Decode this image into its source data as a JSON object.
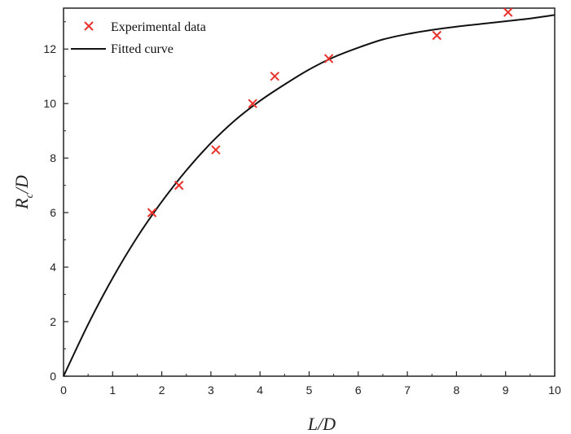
{
  "chart_data": {
    "type": "scatter",
    "xlabel": "L/D",
    "ylabel_main": "R",
    "ylabel_sub": "c",
    "ylabel_tail": "/D",
    "xlim": [
      0,
      10
    ],
    "ylim": [
      0,
      13.5
    ],
    "xticks": [
      0,
      1,
      2,
      3,
      4,
      5,
      6,
      7,
      8,
      9,
      10
    ],
    "yticks": [
      0,
      2,
      4,
      6,
      8,
      10,
      12
    ],
    "grid": false,
    "legend": {
      "placement": "top-left"
    },
    "series": [
      {
        "name": "Experimental data",
        "kind": "markers",
        "marker": "x",
        "color": "#e8332a",
        "x": [
          1.8,
          2.35,
          3.1,
          3.85,
          4.3,
          5.4,
          7.6,
          9.05
        ],
        "y": [
          6.0,
          7.0,
          8.3,
          10.0,
          11.0,
          11.65,
          12.5,
          13.35
        ]
      },
      {
        "name": "Fitted curve",
        "kind": "line",
        "color": "#111111",
        "x": [
          0,
          0.5,
          1,
          1.5,
          2,
          2.5,
          3,
          3.5,
          4,
          4.5,
          5,
          5.5,
          6,
          6.5,
          7,
          7.5,
          8,
          8.5,
          9,
          9.5,
          10
        ],
        "y": [
          0,
          1.9,
          3.6,
          5.1,
          6.4,
          7.55,
          8.55,
          9.4,
          10.1,
          10.7,
          11.25,
          11.7,
          12.05,
          12.35,
          12.55,
          12.7,
          12.82,
          12.92,
          13.02,
          13.12,
          13.25
        ]
      }
    ]
  }
}
